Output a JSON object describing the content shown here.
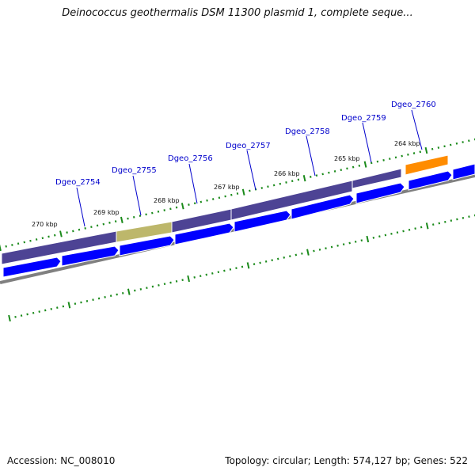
{
  "title": "Deinococcus geothermalis DSM 11300 plasmid 1, complete seque...",
  "footer": {
    "accession": "Accession: NC_008010",
    "stats": "Topology: circular; Length: 574,127 bp; Genes: 522"
  },
  "colors": {
    "gene_bar": "#4d4394",
    "gene_bar_highlight": "#bdb76b",
    "gene_bar_selected": "#ff8c00",
    "cds_arrow": "#0000ff",
    "backbone": "#808080",
    "ticks": "#1a8a1a",
    "label": "#0000cc"
  },
  "gene_labels": [
    "Dgeo_2754",
    "Dgeo_2755",
    "Dgeo_2756",
    "Dgeo_2757",
    "Dgeo_2758",
    "Dgeo_2759",
    "Dgeo_2760"
  ],
  "kbp_labels": [
    "270 kbp",
    "269 kbp",
    "268 kbp",
    "267 kbp",
    "266 kbp",
    "265 kbp",
    "264 kbp"
  ]
}
